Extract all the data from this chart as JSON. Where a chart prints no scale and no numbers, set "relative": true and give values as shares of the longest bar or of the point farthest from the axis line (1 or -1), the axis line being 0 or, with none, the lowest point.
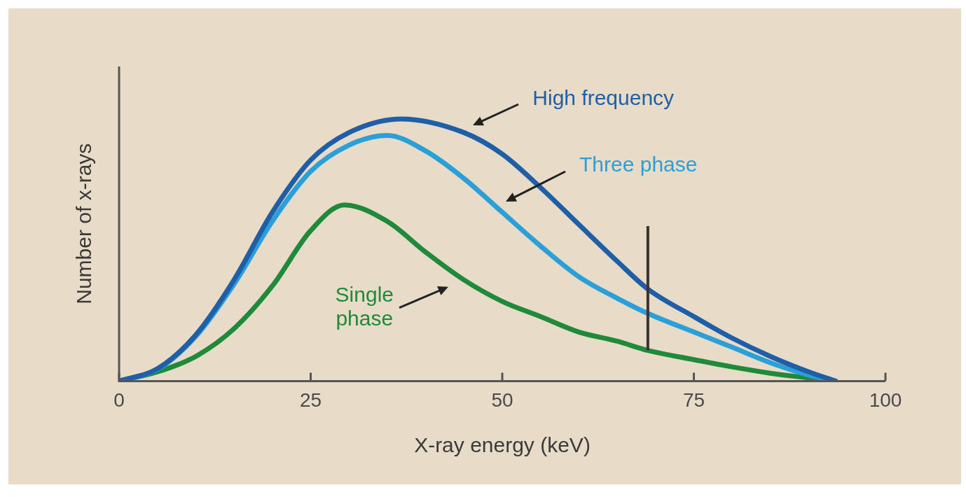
{
  "chart_data": {
    "type": "line",
    "xlabel": "X-ray energy (keV)",
    "ylabel": "Number of x-rays",
    "relative": true,
    "xlim": [
      0,
      100
    ],
    "xticks": [
      0,
      25,
      50,
      75,
      100
    ],
    "grid": false,
    "legend": false,
    "marker": "none",
    "line_style": "solid",
    "ref_lines": [
      {
        "axis": "x",
        "value": 69,
        "color": "#3a3330"
      }
    ],
    "series": [
      {
        "name": "High frequency",
        "color": "#1f5fa8",
        "x": [
          0,
          5,
          10,
          15,
          20,
          25,
          30,
          36.8,
          45,
          50,
          55,
          60,
          65,
          69,
          75,
          80,
          85,
          90,
          93.5
        ],
        "values": [
          0,
          0.047,
          0.176,
          0.386,
          0.644,
          0.843,
          0.948,
          1,
          0.948,
          0.866,
          0.738,
          0.597,
          0.457,
          0.351,
          0.246,
          0.164,
          0.094,
          0.035,
          0
        ]
      },
      {
        "name": "Three phase",
        "color": "#2a9fd8",
        "x": [
          0,
          5,
          10,
          15,
          20,
          25,
          30,
          35,
          40,
          45,
          50,
          55,
          60,
          65,
          69,
          75,
          80,
          85,
          90,
          93.5
        ],
        "values": [
          0,
          0.045,
          0.17,
          0.37,
          0.61,
          0.8,
          0.9,
          0.937,
          0.878,
          0.773,
          0.644,
          0.515,
          0.398,
          0.316,
          0.258,
          0.187,
          0.129,
          0.07,
          0.023,
          0
        ]
      },
      {
        "name": "Single phase",
        "color": "#1e8a3a",
        "x": [
          0,
          5,
          10,
          15,
          20,
          25,
          29.4,
          35,
          40,
          45,
          50,
          55,
          60,
          65,
          69,
          75,
          80,
          85,
          90,
          93.5
        ],
        "values": [
          0,
          0.035,
          0.094,
          0.2,
          0.363,
          0.574,
          0.672,
          0.609,
          0.492,
          0.386,
          0.304,
          0.246,
          0.187,
          0.152,
          0.117,
          0.082,
          0.054,
          0.03,
          0.012,
          0
        ]
      }
    ]
  }
}
